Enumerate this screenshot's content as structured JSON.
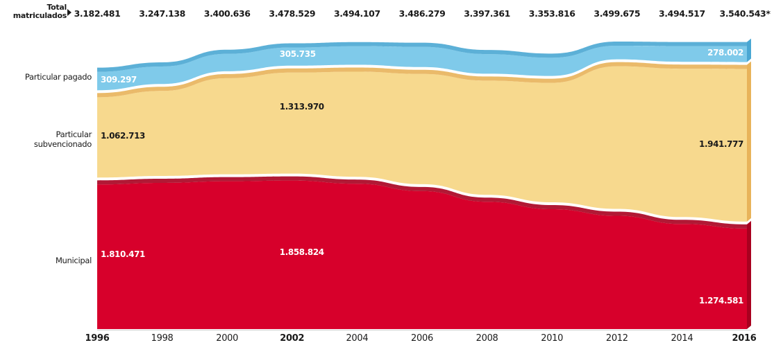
{
  "chart_data": {
    "type": "area",
    "stacked": true,
    "total_label": "Total matriculados",
    "x": [
      1996,
      1998,
      2000,
      2002,
      2004,
      2006,
      2008,
      2010,
      2012,
      2014,
      2016
    ],
    "x_tick_labels": [
      "1996",
      "1998",
      "2000",
      "2002",
      "2004",
      "2006",
      "2008",
      "2010",
      "2012",
      "2014",
      "2016"
    ],
    "x_bold_ticks": [
      "1996",
      "2002",
      "2016"
    ],
    "totals": [
      "3.182.481",
      "3.247.138",
      "3.400.636",
      "3.478.529",
      "3.494.107",
      "3.486.279",
      "3.397.361",
      "3.353.816",
      "3.499.675",
      "3.494.517",
      "3.540.543*"
    ],
    "series": [
      {
        "name": "Municipal",
        "color": "#d7002b",
        "values": [
          1810471,
          1830000,
          1850000,
          1858824,
          1820000,
          1730000,
          1600000,
          1510000,
          1430000,
          1330000,
          1274581
        ],
        "labels": [
          {
            "x": 1996,
            "text": "1.810.471"
          },
          {
            "x": 2002,
            "text": "1.858.824"
          },
          {
            "x": 2016,
            "text": "1.274.581"
          }
        ]
      },
      {
        "name": "Particular subvencionado",
        "color": "#f7d98e",
        "values": [
          1062713,
          1120000,
          1255000,
          1313970,
          1364000,
          1426000,
          1475000,
          1538000,
          1820000,
          1890000,
          1941777
        ],
        "labels": [
          {
            "x": 1996,
            "text": "1.062.713"
          },
          {
            "x": 2002,
            "text": "1.313.970"
          },
          {
            "x": 2016,
            "text": "1.941.777"
          }
        ]
      },
      {
        "name": "Particular pagado",
        "color": "#7fcaea",
        "values": [
          309297,
          297138,
          295636,
          305735,
          310107,
          330279,
          322361,
          305816,
          249675,
          274517,
          278002
        ],
        "labels": [
          {
            "x": 1996,
            "text": "309.297"
          },
          {
            "x": 2002,
            "text": "305.735"
          },
          {
            "x": 2016,
            "text": "278.002"
          }
        ]
      }
    ]
  }
}
